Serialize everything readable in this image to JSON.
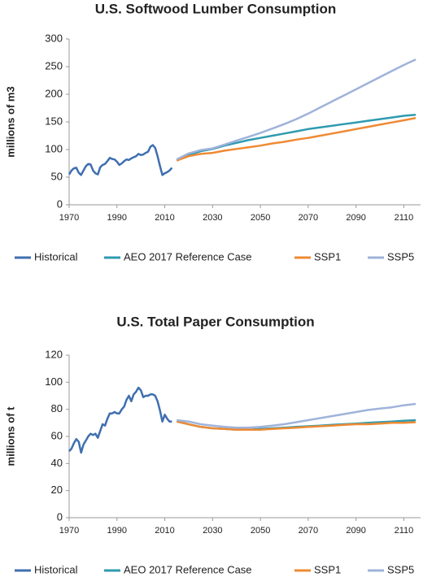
{
  "chart_data": [
    {
      "type": "line",
      "title": "U.S. Softwood Lumber Consumption",
      "y_label": "millions of m3",
      "xlim": [
        1970,
        2117
      ],
      "xticks": [
        1970,
        1990,
        2010,
        2030,
        2050,
        2070,
        2090,
        2110
      ],
      "ylim": [
        0,
        300
      ],
      "yticks": [
        0,
        50,
        100,
        150,
        200,
        250,
        300
      ],
      "grid": false,
      "series": [
        {
          "name": "Historical",
          "color": "#3f6fb0",
          "x": [
            1970,
            1971,
            1972,
            1973,
            1974,
            1975,
            1976,
            1977,
            1978,
            1979,
            1980,
            1981,
            1982,
            1983,
            1984,
            1985,
            1986,
            1987,
            1988,
            1989,
            1990,
            1991,
            1992,
            1993,
            1994,
            1995,
            1996,
            1997,
            1998,
            1999,
            2000,
            2001,
            2002,
            2003,
            2004,
            2005,
            2006,
            2007,
            2008,
            2009,
            2010,
            2011,
            2012,
            2013
          ],
          "values": [
            55,
            62,
            66,
            67,
            58,
            54,
            62,
            70,
            74,
            73,
            62,
            57,
            55,
            68,
            72,
            74,
            79,
            85,
            83,
            82,
            78,
            72,
            75,
            79,
            82,
            81,
            84,
            86,
            88,
            92,
            90,
            91,
            94,
            96,
            105,
            108,
            103,
            88,
            70,
            54,
            57,
            59,
            62,
            67
          ]
        },
        {
          "name": "AEO 2017 Reference Case",
          "color": "#2e9bb0",
          "x": [
            2015,
            2020,
            2025,
            2030,
            2035,
            2040,
            2045,
            2050,
            2055,
            2060,
            2065,
            2070,
            2075,
            2080,
            2085,
            2090,
            2095,
            2100,
            2105,
            2110,
            2115
          ],
          "values": [
            80,
            90,
            97,
            101,
            107,
            112,
            117,
            121,
            125,
            129,
            133,
            137,
            140,
            143,
            146,
            149,
            152,
            155,
            158,
            161,
            163
          ]
        },
        {
          "name": "SSP1",
          "color": "#ef8a33",
          "x": [
            2015,
            2020,
            2025,
            2030,
            2035,
            2040,
            2045,
            2050,
            2055,
            2060,
            2065,
            2070,
            2075,
            2080,
            2085,
            2090,
            2095,
            2100,
            2105,
            2110,
            2115
          ],
          "values": [
            80,
            88,
            92,
            94,
            98,
            101,
            104,
            107,
            111,
            114,
            118,
            121,
            125,
            129,
            133,
            137,
            141,
            145,
            149,
            153,
            157
          ]
        },
        {
          "name": "SSP5",
          "color": "#9fb3da",
          "x": [
            2015,
            2020,
            2025,
            2030,
            2035,
            2040,
            2045,
            2050,
            2055,
            2060,
            2065,
            2070,
            2075,
            2080,
            2085,
            2090,
            2095,
            2100,
            2105,
            2110,
            2115
          ],
          "values": [
            82,
            93,
            99,
            102,
            109,
            116,
            123,
            130,
            138,
            146,
            155,
            165,
            176,
            187,
            198,
            209,
            220,
            231,
            242,
            253,
            263
          ]
        }
      ]
    },
    {
      "type": "line",
      "title": "U.S. Total Paper Consumption",
      "y_label": "millions of t",
      "xlim": [
        1970,
        2117
      ],
      "xticks": [
        1970,
        1990,
        2010,
        2030,
        2050,
        2070,
        2090,
        2110
      ],
      "ylim": [
        0,
        120
      ],
      "yticks": [
        0,
        20,
        40,
        60,
        80,
        100,
        120
      ],
      "grid": false,
      "series": [
        {
          "name": "Historical",
          "color": "#3f6fb0",
          "x": [
            1970,
            1971,
            1972,
            1973,
            1974,
            1975,
            1976,
            1977,
            1978,
            1979,
            1980,
            1981,
            1982,
            1983,
            1984,
            1985,
            1986,
            1987,
            1988,
            1989,
            1990,
            1991,
            1992,
            1993,
            1994,
            1995,
            1996,
            1997,
            1998,
            1999,
            2000,
            2001,
            2002,
            2003,
            2004,
            2005,
            2006,
            2007,
            2008,
            2009,
            2010,
            2011,
            2012,
            2013
          ],
          "values": [
            49,
            51,
            55,
            58,
            56,
            48,
            54,
            57,
            60,
            62,
            61,
            62,
            59,
            64,
            69,
            68,
            73,
            77,
            77,
            78,
            77,
            77,
            80,
            82,
            87,
            90,
            86,
            91,
            93,
            96,
            94,
            89,
            90,
            90,
            91,
            91,
            90,
            86,
            79,
            71,
            76,
            73,
            71,
            71
          ]
        },
        {
          "name": "AEO 2017 Reference Case",
          "color": "#2e9bb0",
          "x": [
            2015,
            2020,
            2025,
            2030,
            2035,
            2040,
            2045,
            2050,
            2055,
            2060,
            2065,
            2070,
            2075,
            2080,
            2085,
            2090,
            2095,
            2100,
            2105,
            2110,
            2115
          ],
          "values": [
            71,
            69,
            67,
            66,
            65.5,
            65,
            65,
            65.5,
            66,
            66.5,
            67,
            67.5,
            68,
            68.5,
            69,
            69.5,
            70,
            70.5,
            71,
            71.5,
            72
          ]
        },
        {
          "name": "SSP1",
          "color": "#ef8a33",
          "x": [
            2015,
            2020,
            2025,
            2030,
            2035,
            2040,
            2045,
            2050,
            2055,
            2060,
            2065,
            2070,
            2075,
            2080,
            2085,
            2090,
            2095,
            2100,
            2105,
            2110,
            2115
          ],
          "values": [
            71,
            69,
            67,
            66,
            65.5,
            65,
            65,
            65,
            65.5,
            66,
            66.5,
            67,
            67.5,
            68,
            68.5,
            69,
            69,
            69.5,
            70,
            70,
            70.5
          ]
        },
        {
          "name": "SSP5",
          "color": "#9fb3da",
          "x": [
            2015,
            2020,
            2025,
            2030,
            2035,
            2040,
            2045,
            2050,
            2055,
            2060,
            2065,
            2070,
            2075,
            2080,
            2085,
            2090,
            2095,
            2100,
            2105,
            2110,
            2115
          ],
          "values": [
            72,
            71,
            69,
            68,
            67,
            66.5,
            66.5,
            67,
            68,
            69,
            70.5,
            72,
            73.5,
            75,
            76.5,
            78,
            79.5,
            80.5,
            81.5,
            83,
            84
          ]
        }
      ]
    }
  ]
}
